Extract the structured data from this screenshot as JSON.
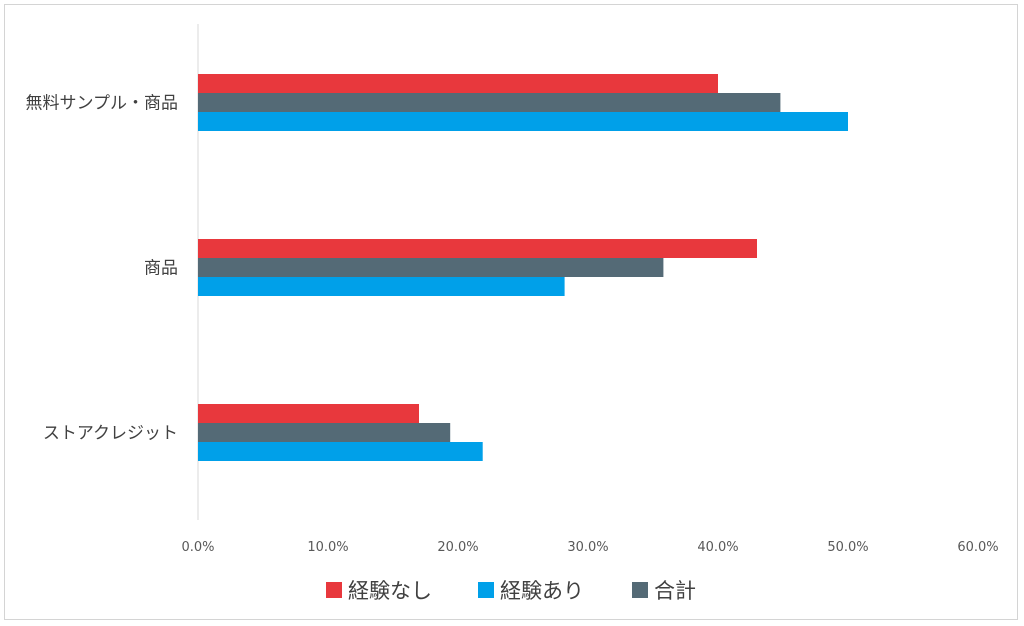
{
  "chart_data": {
    "type": "bar",
    "orientation": "horizontal",
    "categories": [
      "無料サンプル・商品",
      "商品",
      "ストアクレジット"
    ],
    "series": [
      {
        "name": "経験なし",
        "color": "#e8383d",
        "values": [
          40.0,
          43.0,
          17.0
        ]
      },
      {
        "name": "合計",
        "color": "#546a76",
        "values": [
          44.8,
          35.8,
          19.4
        ]
      },
      {
        "name": "経験あり",
        "color": "#00a0e9",
        "values": [
          50.0,
          28.2,
          21.9
        ]
      }
    ],
    "xlim": [
      0,
      60
    ],
    "xticks": [
      "0.0%",
      "10.0%",
      "20.0%",
      "30.0%",
      "40.0%",
      "50.0%",
      "60.0%"
    ],
    "legend": {
      "position": "bottom",
      "items": [
        {
          "name": "経験なし",
          "color": "#e8383d"
        },
        {
          "name": "経験あり",
          "color": "#00a0e9"
        },
        {
          "name": "合計",
          "color": "#546a76"
        }
      ]
    },
    "grid": false
  }
}
